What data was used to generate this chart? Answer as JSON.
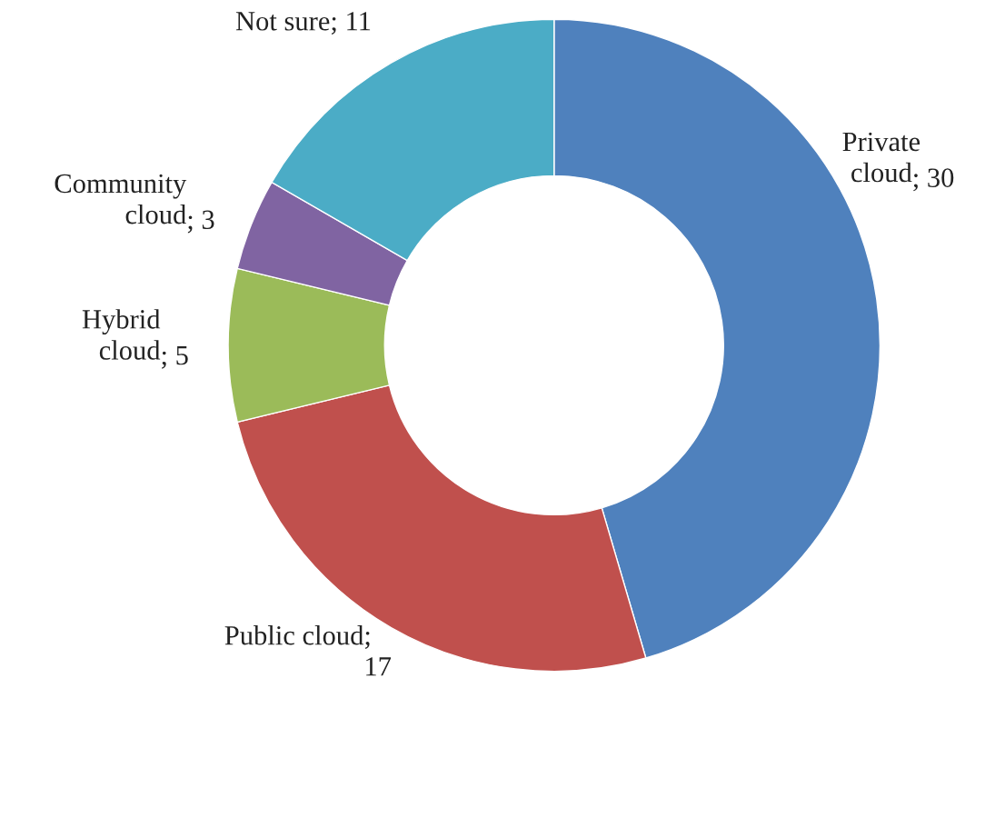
{
  "chart_data": {
    "type": "donut",
    "categories": [
      "Private\ncloud",
      "Public cloud",
      "Hybrid\ncloud",
      "Community\ncloud",
      "Not sure"
    ],
    "values": [
      30,
      17,
      5,
      3,
      11
    ],
    "colors": [
      "#4f81bd",
      "#c0504d",
      "#9bbb59",
      "#8064a2",
      "#4bacc6"
    ],
    "value_labels": [
      "; 30",
      ";\n17",
      "; 5",
      "; 3",
      "; 11"
    ],
    "legend": false
  }
}
